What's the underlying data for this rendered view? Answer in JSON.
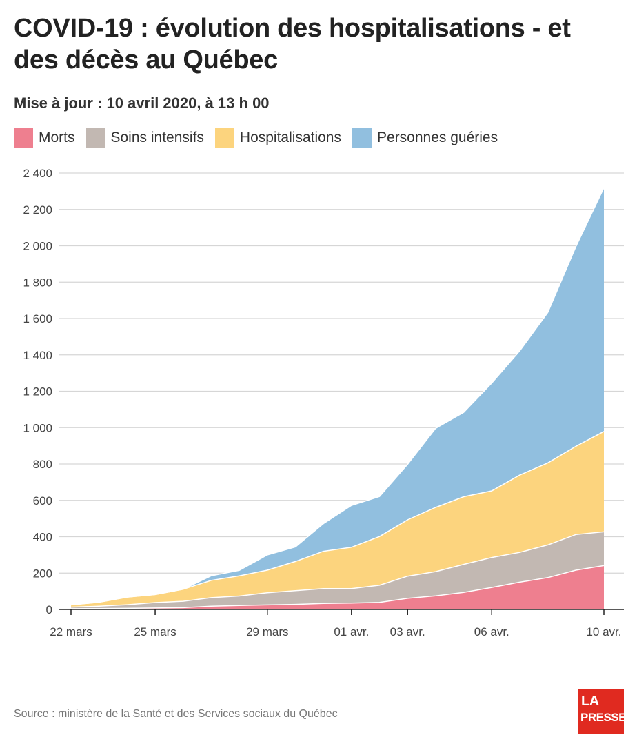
{
  "header": {
    "title": "COVID-19 : évolution des hospitalisations - et des décès au Québec",
    "subtitle": "Mise à jour : 10 avril 2020, à 13 h 00"
  },
  "legend": [
    {
      "label": "Morts",
      "color": "#ee7f8f"
    },
    {
      "label": "Soins intensifs",
      "color": "#c2b8b2"
    },
    {
      "label": "Hospitalisations",
      "color": "#fcd47e"
    },
    {
      "label": "Personnes guéries",
      "color": "#91bfdf"
    }
  ],
  "footer": {
    "source": "Source : ministère de la Santé et des Services sociaux du Québec",
    "logo_line1": "LA",
    "logo_line2": "PRESSE"
  },
  "chart_data": {
    "type": "area",
    "stacked": true,
    "x": [
      "2020-03-22",
      "2020-03-23",
      "2020-03-24",
      "2020-03-25",
      "2020-03-26",
      "2020-03-27",
      "2020-03-28",
      "2020-03-29",
      "2020-03-30",
      "2020-03-31",
      "2020-04-01",
      "2020-04-02",
      "2020-04-03",
      "2020-04-04",
      "2020-04-05",
      "2020-04-06",
      "2020-04-07",
      "2020-04-08",
      "2020-04-09",
      "2020-04-10"
    ],
    "tick_labels": [
      {
        "x": "2020-03-22",
        "label": "22 mars"
      },
      {
        "x": "2020-03-25",
        "label": "25 mars"
      },
      {
        "x": "2020-03-29",
        "label": "29 mars"
      },
      {
        "x": "2020-04-01",
        "label": "01 avr."
      },
      {
        "x": "2020-04-03",
        "label": "03 avr."
      },
      {
        "x": "2020-04-06",
        "label": "06 avr."
      },
      {
        "x": "2020-04-10",
        "label": "10 avr."
      }
    ],
    "series": [
      {
        "name": "Morts",
        "color": "#ee7f8f",
        "values": [
          4,
          5,
          6,
          8,
          10,
          18,
          22,
          25,
          28,
          33,
          35,
          39,
          61,
          75,
          94,
          121,
          150,
          175,
          216,
          241
        ]
      },
      {
        "name": "Soins intensifs",
        "color": "#c2b8b2",
        "values": [
          9,
          13,
          20,
          30,
          35,
          47,
          52,
          67,
          75,
          82,
          80,
          94,
          122,
          133,
          154,
          165,
          164,
          180,
          196,
          186
        ]
      },
      {
        "name": "Hospitalisations",
        "color": "#fcd47e",
        "values": [
          12,
          22,
          42,
          44,
          66,
          95,
          111,
          124,
          161,
          205,
          227,
          268,
          310,
          353,
          372,
          366,
          425,
          451,
          485,
          552
        ]
      },
      {
        "name": "Personnes guéries",
        "color": "#91bfdf",
        "values": [
          0,
          0,
          0,
          0,
          0,
          25,
          30,
          84,
          80,
          152,
          230,
          220,
          305,
          435,
          464,
          593,
          683,
          827,
          1098,
          1340
        ]
      }
    ],
    "ylim": [
      0,
      2400
    ],
    "yticks": [
      0,
      200,
      400,
      600,
      800,
      1000,
      1200,
      1400,
      1600,
      1800,
      2000,
      2200,
      2400
    ],
    "ytick_labels": [
      "0",
      "200",
      "400",
      "600",
      "800",
      "1 000",
      "1 200",
      "1 400",
      "1 600",
      "1 800",
      "2 000",
      "2 200",
      "2 400"
    ],
    "grid": true,
    "legend_position": "top-left"
  }
}
